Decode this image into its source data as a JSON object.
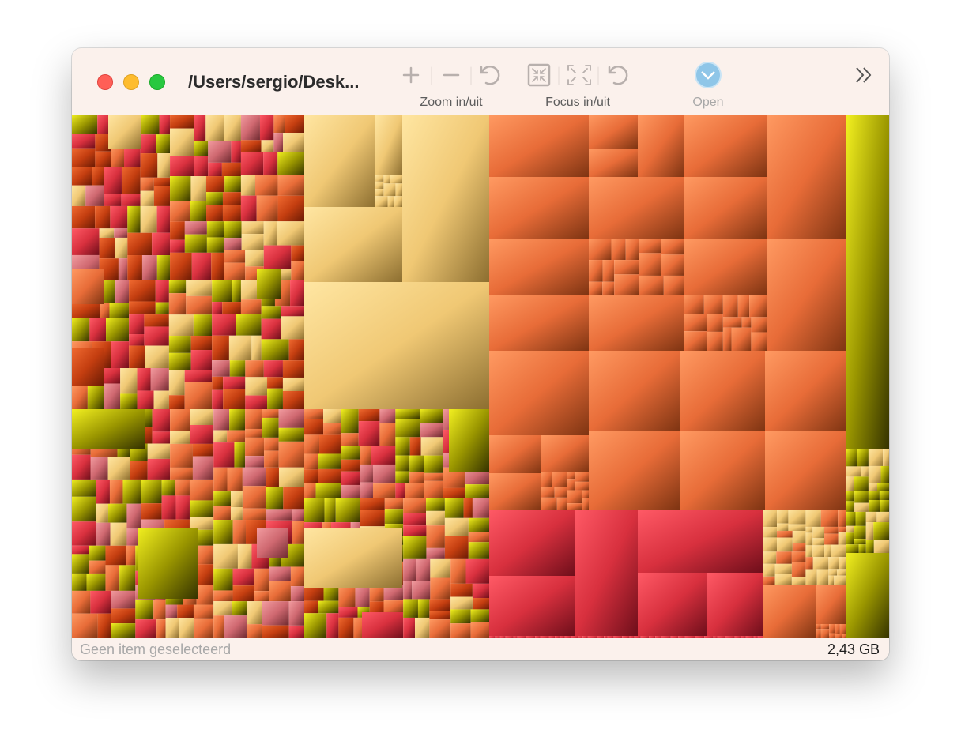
{
  "window": {
    "title": "/Users/sergio/Desk..."
  },
  "toolbar": {
    "items": [
      {
        "label": "Zoom in/uit"
      },
      {
        "label": "Focus in/uit"
      },
      {
        "label": "Open"
      }
    ]
  },
  "status": {
    "selection": "Geen item geselecteerd",
    "size": "2,43 GB"
  }
}
